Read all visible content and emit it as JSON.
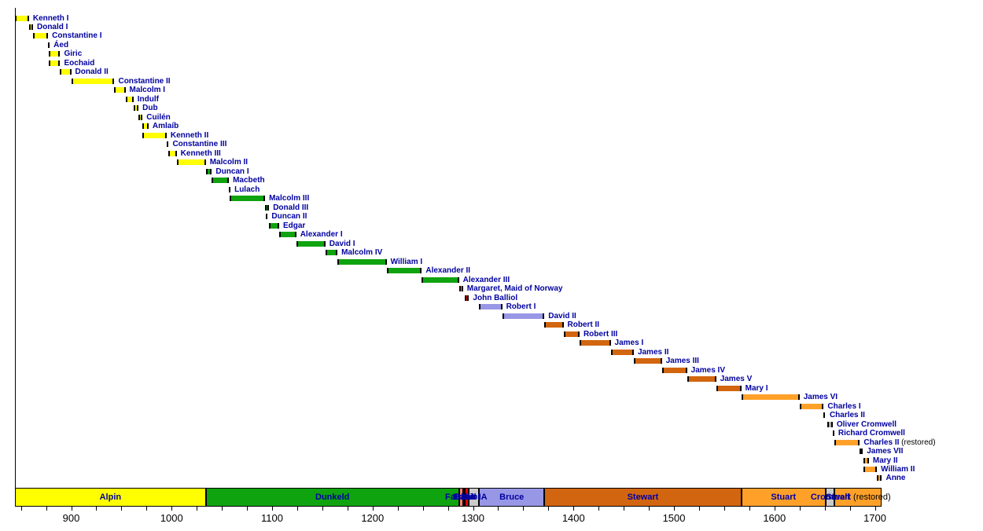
{
  "colors": {
    "alpin": "#FFFF00",
    "dunkeld": "#0FA30F",
    "fairhair": "#FA8072",
    "balliol": "#E00505",
    "bruce": "#9897E6",
    "stewart": "#D2650F",
    "stuart": "#FFA129",
    "cromwell": "#ABABAB",
    "interregnum": "#CBCBCB",
    "label_text": "#0000A0",
    "suffix_text": "#000000",
    "axis_text": "#000000"
  },
  "chart_data": {
    "type": "timeline",
    "title": "",
    "xlabel": "",
    "ylabel": "",
    "axis": {
      "min_year": 843,
      "max_year": 1707,
      "minor_tick_step": 25,
      "first_tick": 850,
      "last_tick": 1700,
      "labeled_ticks": [
        900,
        1000,
        1100,
        1200,
        1300,
        1400,
        1500,
        1600,
        1700
      ]
    },
    "monarchs": [
      {
        "name": "Kenneth I",
        "start": 843,
        "end": 858,
        "house": "alpin"
      },
      {
        "name": "Donald I",
        "start": 858,
        "end": 862,
        "house": "alpin"
      },
      {
        "name": "Constantine I",
        "start": 862,
        "end": 877,
        "house": "alpin"
      },
      {
        "name": "Áed",
        "start": 877,
        "end": 878,
        "house": "alpin"
      },
      {
        "name": "Giric",
        "start": 878,
        "end": 889,
        "house": "alpin"
      },
      {
        "name": "Eochaid",
        "start": 878,
        "end": 889,
        "house": "alpin"
      },
      {
        "name": "Donald II",
        "start": 889,
        "end": 900,
        "house": "alpin"
      },
      {
        "name": "Constantine II",
        "start": 900,
        "end": 943,
        "house": "alpin"
      },
      {
        "name": "Malcolm I",
        "start": 943,
        "end": 954,
        "house": "alpin"
      },
      {
        "name": "Indulf",
        "start": 954,
        "end": 962,
        "house": "alpin"
      },
      {
        "name": "Dub",
        "start": 962,
        "end": 967,
        "house": "alpin"
      },
      {
        "name": "Cuilén",
        "start": 967,
        "end": 971,
        "house": "alpin"
      },
      {
        "name": "Amlaíb",
        "start": 971,
        "end": 977,
        "house": "alpin"
      },
      {
        "name": "Kenneth II",
        "start": 971,
        "end": 995,
        "house": "alpin"
      },
      {
        "name": "Constantine III",
        "start": 995,
        "end": 997,
        "house": "alpin"
      },
      {
        "name": "Kenneth III",
        "start": 997,
        "end": 1005,
        "house": "alpin"
      },
      {
        "name": "Malcolm II",
        "start": 1005,
        "end": 1034,
        "house": "alpin"
      },
      {
        "name": "Duncan I",
        "start": 1034,
        "end": 1040,
        "house": "dunkeld"
      },
      {
        "name": "Macbeth",
        "start": 1040,
        "end": 1057,
        "house": "dunkeld"
      },
      {
        "name": "Lulach",
        "start": 1057,
        "end": 1058,
        "house": "dunkeld"
      },
      {
        "name": "Malcolm III",
        "start": 1058,
        "end": 1093,
        "house": "dunkeld"
      },
      {
        "name": "Donald III",
        "start": 1093,
        "end": 1097,
        "house": "dunkeld"
      },
      {
        "name": "Duncan II",
        "start": 1094,
        "end": 1094,
        "house": "dunkeld"
      },
      {
        "name": "Edgar",
        "start": 1097,
        "end": 1107,
        "house": "dunkeld"
      },
      {
        "name": "Alexander I",
        "start": 1107,
        "end": 1124,
        "house": "dunkeld"
      },
      {
        "name": "David I",
        "start": 1124,
        "end": 1153,
        "house": "dunkeld"
      },
      {
        "name": "Malcolm IV",
        "start": 1153,
        "end": 1165,
        "house": "dunkeld"
      },
      {
        "name": "William I",
        "start": 1165,
        "end": 1214,
        "house": "dunkeld"
      },
      {
        "name": "Alexander II",
        "start": 1214,
        "end": 1249,
        "house": "dunkeld"
      },
      {
        "name": "Alexander III",
        "start": 1249,
        "end": 1286,
        "house": "dunkeld"
      },
      {
        "name": "Margaret, Maid of Norway",
        "start": 1286,
        "end": 1290,
        "house": "fairhair"
      },
      {
        "name": "John Balliol",
        "start": 1292,
        "end": 1296,
        "house": "balliol"
      },
      {
        "name": "Robert I",
        "start": 1306,
        "end": 1329,
        "house": "bruce"
      },
      {
        "name": "David II",
        "start": 1329,
        "end": 1371,
        "house": "bruce"
      },
      {
        "name": "Robert II",
        "start": 1371,
        "end": 1390,
        "house": "stewart"
      },
      {
        "name": "Robert III",
        "start": 1390,
        "end": 1406,
        "house": "stewart"
      },
      {
        "name": "James I",
        "start": 1406,
        "end": 1437,
        "house": "stewart"
      },
      {
        "name": "James II",
        "start": 1437,
        "end": 1460,
        "house": "stewart"
      },
      {
        "name": "James III",
        "start": 1460,
        "end": 1488,
        "house": "stewart"
      },
      {
        "name": "James IV",
        "start": 1488,
        "end": 1513,
        "house": "stewart"
      },
      {
        "name": "James V",
        "start": 1513,
        "end": 1542,
        "house": "stewart"
      },
      {
        "name": "Mary I",
        "start": 1542,
        "end": 1567,
        "house": "stewart"
      },
      {
        "name": "James VI",
        "start": 1567,
        "end": 1625,
        "house": "stuart"
      },
      {
        "name": "Charles I",
        "start": 1625,
        "end": 1649,
        "house": "stuart"
      },
      {
        "name": "Charles II",
        "start": 1649,
        "end": 1651,
        "house": "stuart"
      },
      {
        "name": "Oliver Cromwell",
        "start": 1653,
        "end": 1658,
        "house": "cromwell"
      },
      {
        "name": "Richard Cromwell",
        "start": 1658,
        "end": 1659,
        "house": "cromwell"
      },
      {
        "name": "Charles II",
        "suffix": " (restored)",
        "start": 1660,
        "end": 1685,
        "house": "stuart"
      },
      {
        "name": "James VII",
        "start": 1685,
        "end": 1688,
        "house": "stuart"
      },
      {
        "name": "Mary II",
        "start": 1689,
        "end": 1694,
        "house": "stuart"
      },
      {
        "name": "William II",
        "start": 1689,
        "end": 1702,
        "house": "stuart"
      },
      {
        "name": "Anne",
        "start": 1702,
        "end": 1707,
        "house": "stuart"
      }
    ],
    "dynasties": [
      {
        "label": "Alpin",
        "start": 843,
        "end": 1034,
        "house": "alpin"
      },
      {
        "label": "Dunkeld",
        "start": 1034,
        "end": 1286,
        "house": "dunkeld"
      },
      {
        "label": "Fairhair",
        "start": 1286,
        "end": 1290,
        "house": "fairhair"
      },
      {
        "label": "1st IA",
        "start": 1290,
        "end": 1292,
        "house": "interregnum"
      },
      {
        "label": "Balliol",
        "start": 1292,
        "end": 1296,
        "house": "balliol"
      },
      {
        "label": "2nd IA",
        "start": 1296,
        "end": 1306,
        "house": "interregnum"
      },
      {
        "label": "Bruce",
        "start": 1306,
        "end": 1371,
        "house": "bruce"
      },
      {
        "label": "Stewart",
        "start": 1371,
        "end": 1567,
        "house": "stewart"
      },
      {
        "label": "Stuart",
        "start": 1567,
        "end": 1651,
        "house": "stuart"
      },
      {
        "label": "Cromwell",
        "start": 1651,
        "end": 1660,
        "house": "interregnum"
      },
      {
        "label": "Stuart",
        "suffix": " (restored)",
        "start": 1660,
        "end": 1707,
        "house": "stuart"
      }
    ]
  }
}
